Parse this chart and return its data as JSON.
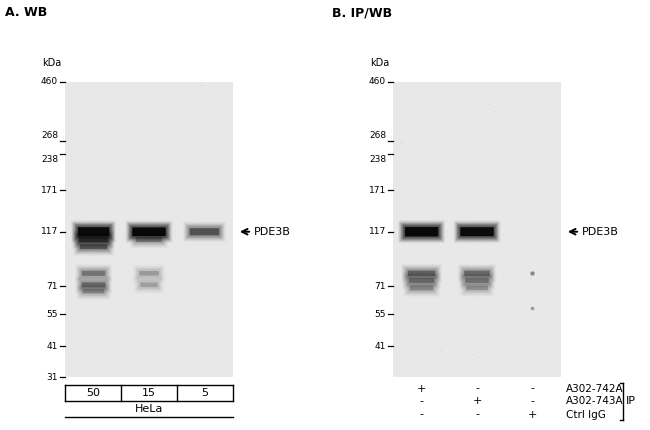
{
  "panel_A_title": "A. WB",
  "panel_B_title": "B. IP/WB",
  "kda_label": "kDa",
  "mw_markers_A": [
    460,
    268,
    238,
    171,
    117,
    71,
    55,
    41,
    31
  ],
  "mw_markers_B": [
    460,
    268,
    238,
    171,
    117,
    71,
    55,
    41
  ],
  "label_pde3b": "←PDE3B",
  "panel_A_samples": [
    "50",
    "15",
    "5"
  ],
  "panel_A_cell_line": "HeLa",
  "ip_labels": [
    "A302-742A",
    "A302-743A",
    "Ctrl IgG"
  ],
  "ip_plus_minus": [
    [
      "+",
      "-",
      "-"
    ],
    [
      "-",
      "+",
      "-"
    ],
    [
      "-",
      "-",
      "+"
    ]
  ],
  "ip_group_label": "IP",
  "fig_width": 6.5,
  "fig_height": 4.3,
  "dpi": 100,
  "gel_bg": 0.91,
  "overall_bg": 0.96
}
